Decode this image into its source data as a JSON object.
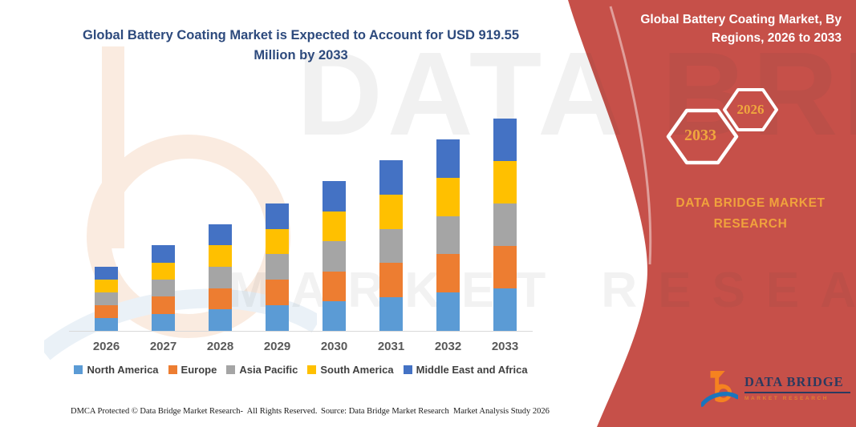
{
  "title": {
    "text": "Global Battery Coating Market is Expected to Account for USD 919.55 Million by 2033",
    "color": "#2d4a7d"
  },
  "side_panel": {
    "background_color": "#C65049",
    "heading": "Global Battery Coating Market, By Regions, 2026 to 2033",
    "hexagon_badges": [
      {
        "label": "2033"
      },
      {
        "label": "2026"
      }
    ],
    "badge_text_color": "#F0A73E",
    "brand_name": "DATA BRIDGE MARKET RESEARCH",
    "brand_color": "#F0A23C",
    "logo": {
      "name_line": "DATA BRIDGE",
      "tagline": "MARKET RESEARCH"
    }
  },
  "watermark": {
    "line1": "DATA BRIDGE",
    "line2": "MARKET RESEARCH"
  },
  "chart_data": {
    "type": "bar",
    "stacked": true,
    "title": "Global Battery Coating Market, By Regions, 2026 to 2033",
    "unit": "USD Million",
    "categories": [
      "2026",
      "2027",
      "2028",
      "2029",
      "2030",
      "2031",
      "2032",
      "2033"
    ],
    "series": [
      {
        "name": "North America",
        "color": "#5B9BD5",
        "values": [
          56,
          74,
          93,
          111,
          129,
          147,
          166,
          184
        ]
      },
      {
        "name": "Europe",
        "color": "#ED7D31",
        "values": [
          55,
          74,
          92,
          110,
          129,
          147,
          166,
          184
        ]
      },
      {
        "name": "Asia Pacific",
        "color": "#A5A5A5",
        "values": [
          56,
          74,
          93,
          111,
          130,
          148,
          166,
          184
        ]
      },
      {
        "name": "South America",
        "color": "#FFC000",
        "values": [
          55,
          74,
          92,
          110,
          129,
          147,
          166,
          183.55
        ]
      },
      {
        "name": "Middle East and Africa",
        "color": "#4472C4",
        "values": [
          56,
          75,
          93,
          111,
          130,
          148,
          165,
          184
        ]
      }
    ],
    "totals": [
      278,
      371,
      463,
      553,
      647,
      737,
      829,
      919.55
    ],
    "ylim": [
      0,
      950
    ],
    "grid": false,
    "y_axis_visible": false,
    "legend_position": "bottom",
    "annotation": "2033 total = USD 919.55 Million (stated in title); other values estimated from bar heights"
  },
  "footer": {
    "left": "DMCA Protected © Data Bridge Market Research-  All Rights Reserved.",
    "right": "Source: Data Bridge Market Research  Market Analysis Study 2026"
  },
  "colors": {
    "axis_line": "#d9d9d9",
    "year_label": "#595959",
    "legend_text": "#404040"
  }
}
